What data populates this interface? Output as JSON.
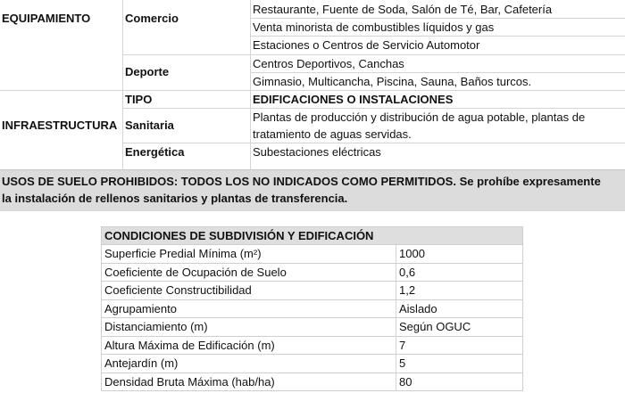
{
  "uses_table": {
    "equipamiento": {
      "label": "EQUIPAMIENTO",
      "comercio": {
        "label": "Comercio",
        "items": [
          "Restaurante, Fuente de Soda, Salón de Té, Bar, Cafetería",
          "Venta minorista de combustibles líquidos y gas",
          "Estaciones o Centros de Servicio Automotor"
        ]
      },
      "deporte": {
        "label": "Deporte",
        "items": [
          "Centros Deportivos, Canchas",
          "Gimnasio, Multicancha, Piscina, Sauna, Baños turcos."
        ]
      }
    },
    "infraestructura": {
      "label": "INFRAESTRUCTURA",
      "tipo_label": "TIPO",
      "tipo_header": "EDIFICACIONES O INSTALACIONES",
      "sanitaria": {
        "label": "Sanitaria",
        "line1": "Plantas de producción y distribución de agua potable, plantas de",
        "line2": "tratamiento de aguas servidas."
      },
      "energetica": {
        "label": "Energética",
        "item": "Subestaciones eléctricas"
      }
    },
    "prohibidos": {
      "line1": "USOS DE SUELO PROHIBIDOS: TODOS LOS NO INDICADOS COMO PERMITIDOS. Se prohíbe expresamente",
      "line2": "la instalación de rellenos sanitarios y plantas de transferencia."
    }
  },
  "conditions": {
    "title": "CONDICIONES DE SUBDIVISIÓN Y EDIFICACIÓN",
    "rows": [
      {
        "label": "Superficie Predial Mínima (m²)",
        "value": "1000"
      },
      {
        "label": "Coeficiente de Ocupación de Suelo",
        "value": "0,6"
      },
      {
        "label": "Coeficiente Constructibilidad",
        "value": "1,2"
      },
      {
        "label": "Agrupamiento",
        "value": "Aislado"
      },
      {
        "label": "Distanciamiento (m)",
        "value": "Según OGUC"
      },
      {
        "label": "Altura Máxima de Edificación (m)",
        "value": "7"
      },
      {
        "label": "Antejardín (m)",
        "value": "5"
      },
      {
        "label": "Densidad Bruta Máxima (hab/ha)",
        "value": "80"
      }
    ]
  }
}
